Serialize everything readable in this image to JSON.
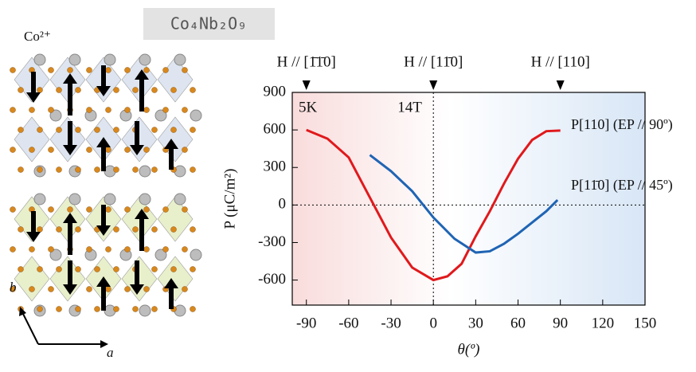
{
  "compound": "Co₄Nb₂O₉",
  "ion_label": "Co²⁺",
  "axis_b": "b",
  "axis_a": "a",
  "chart_data": {
    "type": "line",
    "xlabel": "θ(º)",
    "ylabel": "P (μC/m²)",
    "xlim": [
      -100,
      150
    ],
    "ylim": [
      -800,
      900
    ],
    "xticks": [
      -90,
      -60,
      -30,
      0,
      30,
      60,
      90,
      120,
      150
    ],
    "yticks": [
      -600,
      -300,
      0,
      300,
      600,
      900
    ],
    "annotations": [
      "5K",
      "14T"
    ],
    "markers": [
      {
        "x": -90,
        "label": "H // [1̄1̄0]"
      },
      {
        "x": 0,
        "label": "H // [11̄0]"
      },
      {
        "x": 90,
        "label": "H // [110]"
      }
    ],
    "series": [
      {
        "name": "P[110] (EP // 90º)",
        "color": "#e0191c",
        "x": [
          -90,
          -75,
          -60,
          -45,
          -30,
          -15,
          0,
          10,
          20,
          30,
          40,
          50,
          60,
          70,
          80,
          90
        ],
        "values": [
          600,
          530,
          380,
          60,
          -260,
          -500,
          -600,
          -570,
          -470,
          -250,
          -50,
          170,
          370,
          520,
          590,
          595
        ]
      },
      {
        "name": "P[11̄0] (EP // 45º)",
        "color": "#1f64b4",
        "x": [
          -45,
          -30,
          -15,
          0,
          15,
          30,
          40,
          50,
          60,
          70,
          80,
          88
        ],
        "values": [
          400,
          270,
          110,
          -100,
          -270,
          -380,
          -370,
          -310,
          -230,
          -140,
          -50,
          40
        ]
      }
    ]
  }
}
